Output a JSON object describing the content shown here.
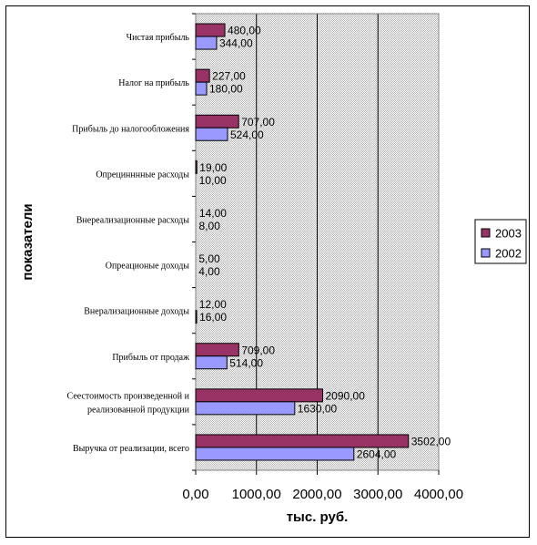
{
  "chart_data": {
    "type": "bar",
    "orientation": "horizontal",
    "categories": [
      "Чистая прибыль",
      "Налог на прибыль",
      "Прибыль до налогообложения",
      "Опрецинннные расходы",
      "Внереализационные  расходы",
      "Опреационые доходы",
      "Внерализационные доходы",
      "Прибыль от продаж",
      "Сеестоимость произведенной и реализованной продукции",
      "Выручка от реализации, всего"
    ],
    "category_lines": [
      [
        "Чистая прибыль"
      ],
      [
        "Налог на прибыль"
      ],
      [
        "Прибыль до налогообложения"
      ],
      [
        "Опрецинннные расходы"
      ],
      [
        "Внереализационные  расходы"
      ],
      [
        "Опреационые доходы"
      ],
      [
        "Внерализационные доходы"
      ],
      [
        "Прибыль от продаж"
      ],
      [
        "Сеестоимость произведенной и",
        "реализованной продукции"
      ],
      [
        "Выручка от реализации, всего"
      ]
    ],
    "series": [
      {
        "name": "2003",
        "color": "#993366",
        "values": [
          480,
          227,
          707,
          19,
          14,
          5,
          12,
          709,
          2090,
          3502
        ],
        "labels": [
          "480,00",
          "227,00",
          "707,00",
          "19,00",
          "14,00",
          "5,00",
          "12,00",
          "709,00",
          "2090,00",
          "3502,00"
        ]
      },
      {
        "name": "2002",
        "color": "#9999ff",
        "values": [
          344,
          180,
          524,
          10,
          8,
          4,
          16,
          514,
          1630,
          2604
        ],
        "labels": [
          "344,00",
          "180,00",
          "524,00",
          "10,00",
          "8,00",
          "4,00",
          "16,00",
          "514,00",
          "1630,00",
          "2604,00"
        ]
      }
    ],
    "xlim": [
      0,
      4000
    ],
    "xticks": [
      0,
      1000,
      2000,
      3000,
      4000
    ],
    "xtick_labels": [
      "0,00",
      "1000,00",
      "2000,00",
      "3000,00",
      "4000,00"
    ],
    "xlabel": "тыс. руб.",
    "ylabel": "показатели",
    "legend": {
      "position": "right",
      "entries": [
        "2003",
        "2002"
      ]
    },
    "plot_background": "#c0c0c0",
    "grid": "vertical"
  }
}
